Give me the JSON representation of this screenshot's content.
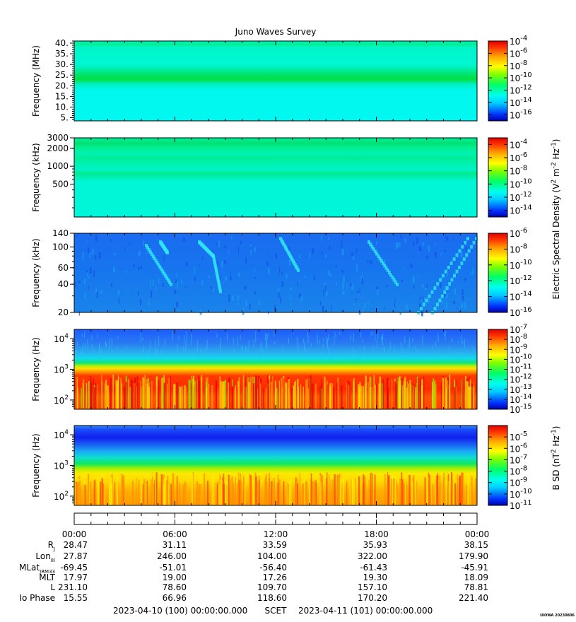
{
  "chart_data": {
    "type": "heatmap",
    "title": "Juno Waves Survey",
    "x_axis": {
      "tick_labels": [
        "00:00",
        "06:00",
        "12:00",
        "18:00",
        "00:00"
      ],
      "range_hours": [
        0,
        24
      ],
      "start_label": "2023-04-10 (100) 00:00:00.000",
      "mid_label": "SCET",
      "end_label": "2023-04-11 (101) 00:00:00.000"
    },
    "panels": [
      {
        "ylabel": "Frequency (MHz)",
        "yscale": "linear",
        "ylim": [
          3.5,
          41
        ],
        "yticks": [
          5,
          10,
          15,
          20,
          25,
          30,
          35,
          40
        ],
        "ytick_labels": [
          "5.",
          "10.",
          "15.",
          "20.",
          "25.",
          "30.",
          "35.",
          "40."
        ],
        "colorbar": {
          "base": "10",
          "exponents": [
            "-4",
            "-6",
            "-8",
            "-10",
            "-12",
            "-14",
            "-16"
          ],
          "range_exp": [
            -17,
            -4
          ]
        }
      },
      {
        "ylabel": "Frequency (kHz)",
        "yscale": "log",
        "ylim": [
          140,
          3000
        ],
        "yticks": [
          500,
          1000,
          2000,
          3000
        ],
        "ytick_labels": [
          "500",
          "1000",
          "2000",
          "3000"
        ],
        "colorbar": {
          "base": "10",
          "exponents": [
            "-4",
            "-6",
            "-8",
            "-10",
            "-12",
            "-14"
          ],
          "range_exp": [
            -15,
            -3
          ]
        }
      },
      {
        "ylabel": "Frequency (kHz)",
        "yscale": "log",
        "ylim": [
          20,
          140
        ],
        "yticks": [
          20,
          40,
          60,
          100,
          140
        ],
        "ytick_labels": [
          "20",
          "40",
          "60",
          "100",
          "140"
        ],
        "colorbar": {
          "base": "10",
          "exponents": [
            "-6",
            "-8",
            "-10",
            "-12",
            "-14",
            "-16"
          ],
          "range_exp": [
            -16,
            -6
          ]
        }
      },
      {
        "ylabel": "Frequency (Hz)",
        "yscale": "log",
        "ylim": [
          50,
          20000
        ],
        "yticks": [
          100,
          1000,
          10000
        ],
        "ytick_labels": [
          {
            "base": "10",
            "exp": "2"
          },
          {
            "base": "10",
            "exp": "3"
          },
          {
            "base": "10",
            "exp": "4"
          }
        ],
        "colorbar": {
          "base": "10",
          "exponents": [
            "-7",
            "-8",
            "-9",
            "-10",
            "-11",
            "-12",
            "-13",
            "-14",
            "-15"
          ],
          "range_exp": [
            -15,
            -7
          ]
        }
      },
      {
        "ylabel": "Frequency (Hz)",
        "yscale": "log",
        "ylim": [
          50,
          20000
        ],
        "yticks": [
          100,
          1000,
          10000
        ],
        "ytick_labels": [
          {
            "base": "10",
            "exp": "2"
          },
          {
            "base": "10",
            "exp": "3"
          },
          {
            "base": "10",
            "exp": "4"
          }
        ],
        "colorbar": {
          "base": "10",
          "exponents": [
            "-5",
            "-6",
            "-7",
            "-8",
            "-9",
            "-10",
            "-11"
          ],
          "range_exp": [
            -11,
            -4
          ]
        }
      }
    ],
    "colorbar_labels": {
      "e_field": {
        "a": "Electric Spectral Density (V",
        "b": "2",
        "c": " m",
        "d": "-2",
        "e": " Hz",
        "f": "-1",
        "g": ")"
      },
      "b_field": {
        "a": "B SD (nT",
        "b": "2",
        "c": " Hz",
        "d": "-1",
        "e": ")"
      }
    },
    "ephemeris": {
      "rows": [
        {
          "label": "R",
          "sub": "J",
          "values": [
            "28.47",
            "31.11",
            "33.59",
            "35.93",
            "38.15"
          ]
        },
        {
          "label": "Lon",
          "sub": "III",
          "values": [
            "27.87",
            "246.00",
            "104.00",
            "322.00",
            "179.90"
          ]
        },
        {
          "label": "MLat",
          "sub": "JRM33",
          "values": [
            "-69.45",
            "-51.01",
            "-56.40",
            "-61.43",
            "-45.91"
          ]
        },
        {
          "label": "MLT",
          "sub": "",
          "values": [
            "17.97",
            "19.00",
            "17.26",
            "19.30",
            "18.09"
          ]
        },
        {
          "label": "L",
          "sub": "",
          "values": [
            "231.10",
            "78.60",
            "109.70",
            "157.10",
            "78.81"
          ]
        },
        {
          "label": "Io Phase",
          "sub": "",
          "values": [
            "15.55",
            "66.96",
            "118.60",
            "170.20",
            "221.40"
          ]
        }
      ]
    },
    "footer_tag": "UIOWA 20230806"
  }
}
